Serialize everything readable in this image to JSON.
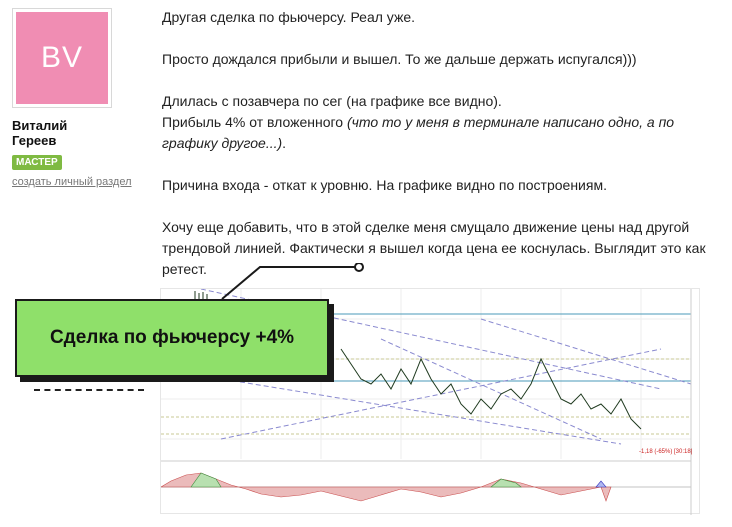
{
  "author": {
    "initials": "BV",
    "name_line1": "Виталий",
    "name_line2": "Гереев",
    "badge": "МАСТЕР",
    "create_link": "создать личный раздел",
    "avatar_color": "#f08db3"
  },
  "post": {
    "p1": "Другая сделка по фьючерсу. Реал уже.",
    "p2": "Просто дождался прибыли и вышел. То же дальше держать испугался)))",
    "p3": "Длилась с позавчера по сег (на графике все видно).",
    "p4a": "Прибыль 4% от вложенного ",
    "p4b": "(что то у меня в терминале написано одно, а по графику другое...)",
    "p4c": ".",
    "p5": "Причина входа - откат к уровню. На графике видно по построениям.",
    "p6": "Хочу еще добавить, что в этой сделке меня смущало движение цены над другой трендовой линией. Фактически я вышел когда цена ее коснулась. Выглядит это как ретест."
  },
  "callout": {
    "text": "Сделка по фьючерсу +4%",
    "bg_color": "#8fe06a"
  },
  "chart": {
    "label": "-1,18 (-65%) [30:18]"
  }
}
